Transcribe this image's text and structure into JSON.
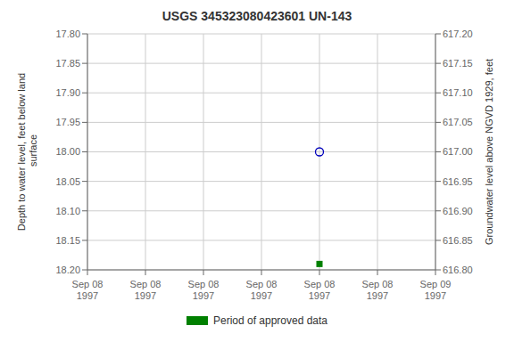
{
  "chart_data": {
    "type": "scatter",
    "title": "USGS 345323080423601 UN-143",
    "y_label": "Depth to water level, feet below land\n surface",
    "y2_label": "Groundwater level above NGVD 1929, feet",
    "categories": [
      "Sep 08\n1997",
      "Sep 08\n1997",
      "Sep 08\n1997",
      "Sep 08\n1997",
      "Sep 08\n1997",
      "Sep 08\n1997",
      "Sep 09\n1997"
    ],
    "series": [
      {
        "color": "#0000bb",
        "marker": "open_circle",
        "values": [
          null,
          null,
          null,
          null,
          18.0,
          null,
          null
        ]
      },
      {
        "name": "Period of approved data",
        "color": "#008000",
        "marker": "square",
        "values": [
          null,
          null,
          null,
          null,
          18.19,
          null,
          null
        ]
      }
    ],
    "ylim": [
      18.2,
      17.8
    ],
    "yticks": [
      {
        "value": 17.8,
        "label": "17.80"
      },
      {
        "value": 17.85,
        "label": "17.85"
      },
      {
        "value": 17.9,
        "label": "17.90"
      },
      {
        "value": 17.95,
        "label": "17.95"
      },
      {
        "value": 18.0,
        "label": "18.00"
      },
      {
        "value": 18.05,
        "label": "18.05"
      },
      {
        "value": 18.1,
        "label": "18.10"
      },
      {
        "value": 18.15,
        "label": "18.15"
      },
      {
        "value": 18.2,
        "label": "18.20"
      }
    ],
    "y2lim": [
      616.8,
      617.2
    ],
    "y2ticks": [
      {
        "value": 617.2,
        "label": "617.20"
      },
      {
        "value": 617.15,
        "label": "617.15"
      },
      {
        "value": 617.1,
        "label": "617.10"
      },
      {
        "value": 617.05,
        "label": "617.05"
      },
      {
        "value": 617.0,
        "label": "617.00"
      },
      {
        "value": 616.95,
        "label": "616.95"
      },
      {
        "value": 616.9,
        "label": "616.90"
      },
      {
        "value": 616.85,
        "label": "616.85"
      },
      {
        "value": 616.8,
        "label": "616.80"
      }
    ],
    "grid": true
  }
}
